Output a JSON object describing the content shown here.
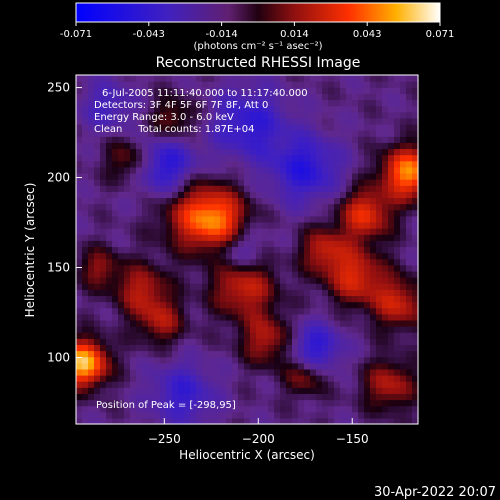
{
  "chart_data": {
    "type": "heatmap",
    "title": "Reconstructed RHESSI Image",
    "xlabel": "Heliocentric X (arcsec)",
    "ylabel": "Heliocentric Y (arcsec)",
    "xlim": [
      -297,
      -115
    ],
    "ylim": [
      63,
      257
    ],
    "xticks": [
      -250,
      -200,
      -150
    ],
    "yticks": [
      100,
      150,
      200,
      250
    ],
    "info_lines": [
      "6-Jul-2005 11:11:40.000 to 11:17:40.000",
      "Detectors: 3F 4F 5F 6F 7F 8F, Att 0",
      "Energy Range: 3.0 - 6.0 keV",
      "Clean     Total counts: 1.87E+04"
    ],
    "peak_text": "Position of Peak = [-298,95]",
    "peak": {
      "x": -298,
      "y": 95
    },
    "colorbar": {
      "ticks": [
        "-0.071",
        "-0.043",
        "-0.014",
        "0.014",
        "0.043",
        "0.071"
      ],
      "min": -0.071,
      "max": 0.071,
      "unit": "(photons cm⁻² s⁻¹ asec⁻²)"
    },
    "blobs": [
      {
        "x": -293,
        "y": 97,
        "amp": 1.0,
        "s": 9
      },
      {
        "x": -120,
        "y": 203,
        "amp": 0.85,
        "s": 10
      },
      {
        "x": -232,
        "y": 180,
        "amp": 0.55,
        "s": 14
      },
      {
        "x": -220,
        "y": 175,
        "amp": 0.5,
        "s": 11
      },
      {
        "x": -208,
        "y": 140,
        "amp": 0.55,
        "s": 12
      },
      {
        "x": -195,
        "y": 110,
        "amp": 0.45,
        "s": 10
      },
      {
        "x": -262,
        "y": 138,
        "amp": 0.45,
        "s": 10
      },
      {
        "x": -252,
        "y": 120,
        "amp": 0.4,
        "s": 9
      },
      {
        "x": -268,
        "y": 210,
        "amp": 0.4,
        "s": 9
      },
      {
        "x": -245,
        "y": 232,
        "amp": 0.35,
        "s": 9
      },
      {
        "x": -143,
        "y": 180,
        "amp": 0.6,
        "s": 10
      },
      {
        "x": -148,
        "y": 145,
        "amp": 0.55,
        "s": 11
      },
      {
        "x": -165,
        "y": 160,
        "amp": 0.45,
        "s": 9
      },
      {
        "x": -125,
        "y": 130,
        "amp": 0.5,
        "s": 10
      },
      {
        "x": -130,
        "y": 85,
        "amp": 0.45,
        "s": 10
      },
      {
        "x": -175,
        "y": 90,
        "amp": 0.4,
        "s": 8
      },
      {
        "x": -285,
        "y": 150,
        "amp": 0.35,
        "s": 8
      },
      {
        "x": -175,
        "y": 205,
        "amp": -0.5,
        "s": 13
      },
      {
        "x": -250,
        "y": 207,
        "amp": -0.55,
        "s": 12
      },
      {
        "x": -205,
        "y": 230,
        "amp": -0.45,
        "s": 14
      },
      {
        "x": -170,
        "y": 105,
        "amp": -0.5,
        "s": 10
      },
      {
        "x": -240,
        "y": 80,
        "amp": -0.4,
        "s": 12
      },
      {
        "x": -210,
        "y": 160,
        "amp": -0.35,
        "s": 10
      },
      {
        "x": -280,
        "y": 240,
        "amp": -0.3,
        "s": 10
      }
    ]
  },
  "footer": {
    "date": "30-Apr-2022 20:07"
  }
}
